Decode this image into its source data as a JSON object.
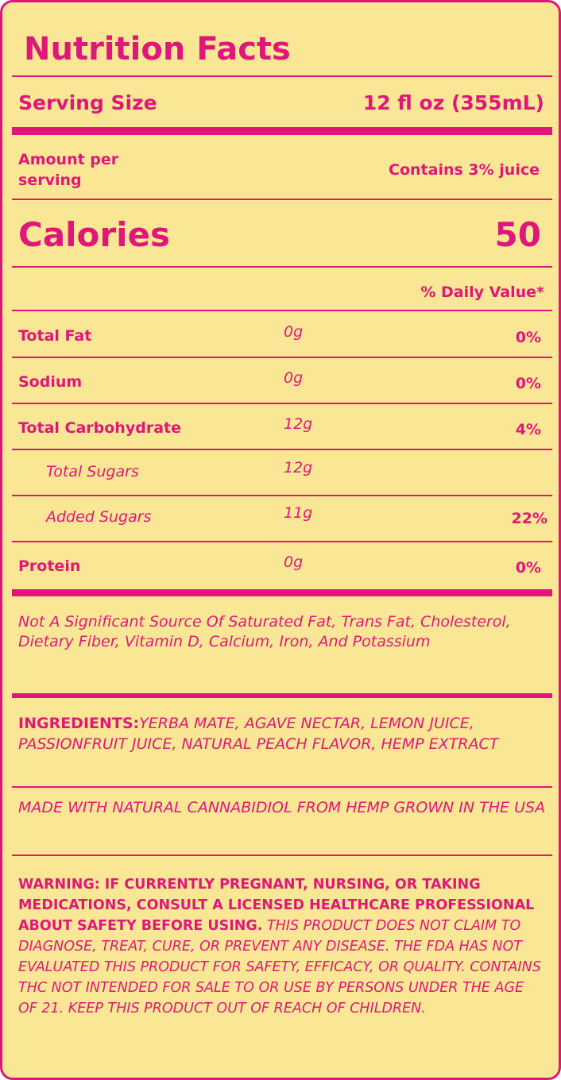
{
  "title": "Nutrition Facts",
  "serving_size": {
    "label": "Serving Size",
    "value": "12 fl oz (355mL)"
  },
  "amount_per_serving": "Amount per serving",
  "juice_content": "Contains 3% juice",
  "calories": {
    "label": "Calories",
    "value": 50
  },
  "daily_value_header": "% Daily Value*",
  "nutrients": [
    {
      "name": "Total Fat",
      "amount": "0g",
      "daily_value": "0%"
    },
    {
      "name": "Sodium",
      "amount": "0g",
      "daily_value": "0%"
    },
    {
      "name": "Total Carbohydrate",
      "amount": "12g",
      "daily_value": "4%"
    },
    {
      "name": "Total Sugars",
      "amount": "12g",
      "sub": true
    },
    {
      "name": "Added Sugars",
      "amount": "11g",
      "daily_value": "22%",
      "sub": true
    },
    {
      "name": "Protein",
      "amount": "0g",
      "daily_value": "0%"
    }
  ],
  "footnote": "Not A Significant Source Of Saturated Fat, Trans Fat, Cholesterol, Dietary Fiber, Vitamin D, Calcium, Iron, And Potassium",
  "ingredients": {
    "label": "INGREDIENTS:",
    "text": "YERBA MATE, AGAVE NECTAR, LEMON JUICE, PASSIONFRUIT JUICE, NATURAL PEACH FLAVOR, HEMP EXTRACT"
  },
  "origin_note": "MADE WITH NATURAL CANNABIDIOL FROM HEMP GROWN IN THE USA",
  "warning": {
    "bold": "WARNING: IF CURRENTLY PREGNANT, NURSING, OR TAKING MEDICATIONS, CONSULT A LICENSED HEALTHCARE PROFESSIONAL ABOUT SAFETY BEFORE USING.",
    "text": "THIS PRODUCT DOES NOT CLAIM TO DIAGNOSE, TREAT, CURE, OR PREVENT ANY DISEASE. THE FDA HAS NOT EVALUATED THIS PRODUCT FOR SAFETY, EFFICACY, OR QUALITY. CONTAINS THC NOT INTENDED FOR SALE TO OR USE BY PERSONS UNDER THE AGE OF 21. KEEP THIS PRODUCT OUT OF REACH OF CHILDREN."
  }
}
